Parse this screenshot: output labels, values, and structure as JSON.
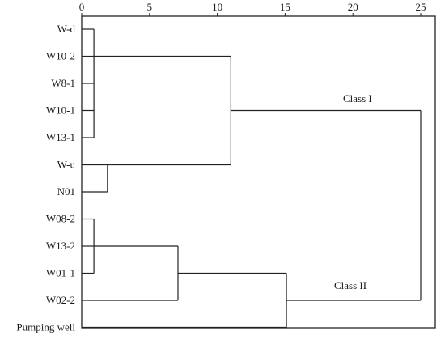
{
  "chart_data": {
    "type": "dendrogram",
    "xlim": [
      0,
      25
    ],
    "x_ticks": [
      "0",
      "5",
      "10",
      "15",
      "20",
      "25"
    ],
    "leaves": [
      "W-d",
      "W10-2",
      "W8-1",
      "W10-1",
      "W13-1",
      "W-u",
      "N01",
      "W08-2",
      "W13-2",
      "W01-1",
      "W02-2",
      "Pumping well"
    ],
    "merges": [
      {
        "members": [
          "W-d",
          "W10-2",
          "W8-1",
          "W10-1",
          "W13-1"
        ],
        "height": 0.9
      },
      {
        "members": [
          "W-u",
          "N01"
        ],
        "height": 1.9
      },
      {
        "members": [
          "W08-2",
          "W13-2",
          "W01-1"
        ],
        "height": 0.9
      },
      {
        "members": [
          "W-d..W13-1",
          "W-u..N01"
        ],
        "height": 11.0
      },
      {
        "members": [
          "W08-2..W01-1",
          "W02-2"
        ],
        "height": 7.1
      },
      {
        "members": [
          "W08-2..W02-2",
          "Pumping well"
        ],
        "height": 15.1
      },
      {
        "members": [
          "Class I",
          "Class II"
        ],
        "height": 25.0
      }
    ],
    "annotations": {
      "class1": "Class I",
      "class2": "Class II"
    }
  }
}
